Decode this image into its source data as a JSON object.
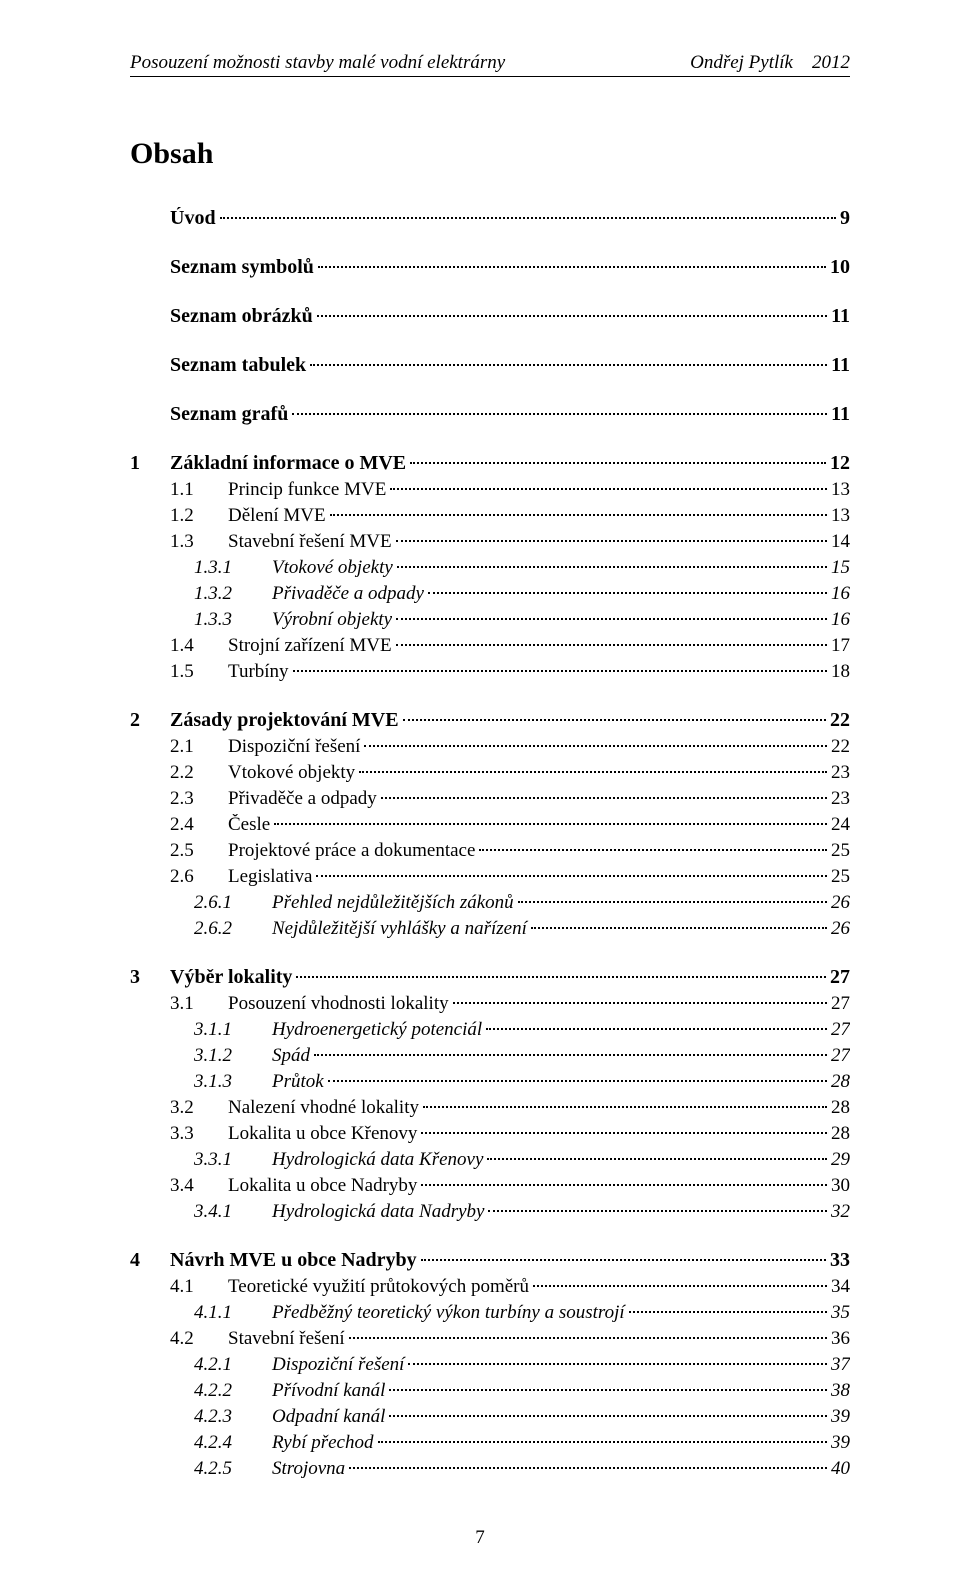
{
  "header": {
    "left": "Posouzení možnosti stavby malé vodní elektrárny",
    "right_author": "Ondřej Pytlík",
    "right_year": "2012"
  },
  "title": "Obsah",
  "footer_page": "7",
  "toc": [
    {
      "level": 0,
      "num": "",
      "title": "Úvod",
      "page": "9"
    },
    {
      "level": 0,
      "num": "",
      "title": "Seznam symbolů",
      "page": "10"
    },
    {
      "level": 0,
      "num": "",
      "title": "Seznam obrázků",
      "page": "11"
    },
    {
      "level": 0,
      "num": "",
      "title": "Seznam tabulek",
      "page": "11"
    },
    {
      "level": 0,
      "num": "",
      "title": "Seznam grafů",
      "page": "11"
    },
    {
      "level": 0,
      "num": "1",
      "title": "Základní informace o MVE",
      "page": "12"
    },
    {
      "level": 1,
      "num": "1.1",
      "title": "Princip funkce MVE",
      "page": "13"
    },
    {
      "level": 1,
      "num": "1.2",
      "title": "Dělení MVE",
      "page": "13"
    },
    {
      "level": 1,
      "num": "1.3",
      "title": "Stavební řešení MVE",
      "page": "14"
    },
    {
      "level": 2,
      "num": "1.3.1",
      "title": "Vtokové objekty",
      "page": "15"
    },
    {
      "level": 2,
      "num": "1.3.2",
      "title": "Přivaděče a odpady",
      "page": "16"
    },
    {
      "level": 2,
      "num": "1.3.3",
      "title": "Výrobní objekty",
      "page": "16"
    },
    {
      "level": 1,
      "num": "1.4",
      "title": "Strojní zařízení MVE",
      "page": "17"
    },
    {
      "level": 1,
      "num": "1.5",
      "title": "Turbíny",
      "page": "18"
    },
    {
      "level": 0,
      "num": "2",
      "title": "Zásady projektování MVE",
      "page": "22"
    },
    {
      "level": 1,
      "num": "2.1",
      "title": "Dispoziční řešení",
      "page": "22"
    },
    {
      "level": 1,
      "num": "2.2",
      "title": "Vtokové objekty",
      "page": "23"
    },
    {
      "level": 1,
      "num": "2.3",
      "title": "Přivaděče a odpady",
      "page": "23"
    },
    {
      "level": 1,
      "num": "2.4",
      "title": "Česle",
      "page": "24"
    },
    {
      "level": 1,
      "num": "2.5",
      "title": "Projektové práce a dokumentace",
      "page": "25"
    },
    {
      "level": 1,
      "num": "2.6",
      "title": "Legislativa",
      "page": "25"
    },
    {
      "level": 2,
      "num": "2.6.1",
      "title": "Přehled nejdůležitějších zákonů",
      "page": "26"
    },
    {
      "level": 2,
      "num": "2.6.2",
      "title": "Nejdůležitější vyhlášky a nařízení",
      "page": "26"
    },
    {
      "level": 0,
      "num": "3",
      "title": "Výběr lokality",
      "page": "27"
    },
    {
      "level": 1,
      "num": "3.1",
      "title": "Posouzení vhodnosti lokality",
      "page": "27"
    },
    {
      "level": 2,
      "num": "3.1.1",
      "title": "Hydroenergetický potenciál",
      "page": "27"
    },
    {
      "level": 2,
      "num": "3.1.2",
      "title": "Spád",
      "page": "27"
    },
    {
      "level": 2,
      "num": "3.1.3",
      "title": "Průtok",
      "page": "28"
    },
    {
      "level": 1,
      "num": "3.2",
      "title": "Nalezení vhodné lokality",
      "page": "28"
    },
    {
      "level": 1,
      "num": "3.3",
      "title": "Lokalita u obce Křenovy",
      "page": "28"
    },
    {
      "level": 2,
      "num": "3.3.1",
      "title": "Hydrologická data Křenovy",
      "page": "29"
    },
    {
      "level": 1,
      "num": "3.4",
      "title": "Lokalita u obce Nadryby",
      "page": "30"
    },
    {
      "level": 2,
      "num": "3.4.1",
      "title": "Hydrologická data Nadryby",
      "page": "32"
    },
    {
      "level": 0,
      "num": "4",
      "title": "Návrh MVE u obce Nadryby",
      "page": "33"
    },
    {
      "level": 1,
      "num": "4.1",
      "title": "Teoretické využití průtokových poměrů",
      "page": "34"
    },
    {
      "level": 2,
      "num": "4.1.1",
      "title": "Předběžný teoretický výkon turbíny a soustrojí",
      "page": "35"
    },
    {
      "level": 1,
      "num": "4.2",
      "title": "Stavební řešení",
      "page": "36"
    },
    {
      "level": 2,
      "num": "4.2.1",
      "title": "Dispoziční řešení",
      "page": "37"
    },
    {
      "level": 2,
      "num": "4.2.2",
      "title": "Přívodní kanál",
      "page": "38"
    },
    {
      "level": 2,
      "num": "4.2.3",
      "title": "Odpadní kanál",
      "page": "39"
    },
    {
      "level": 2,
      "num": "4.2.4",
      "title": "Rybí přechod",
      "page": "39"
    },
    {
      "level": 2,
      "num": "4.2.5",
      "title": "Strojovna",
      "page": "40"
    }
  ]
}
